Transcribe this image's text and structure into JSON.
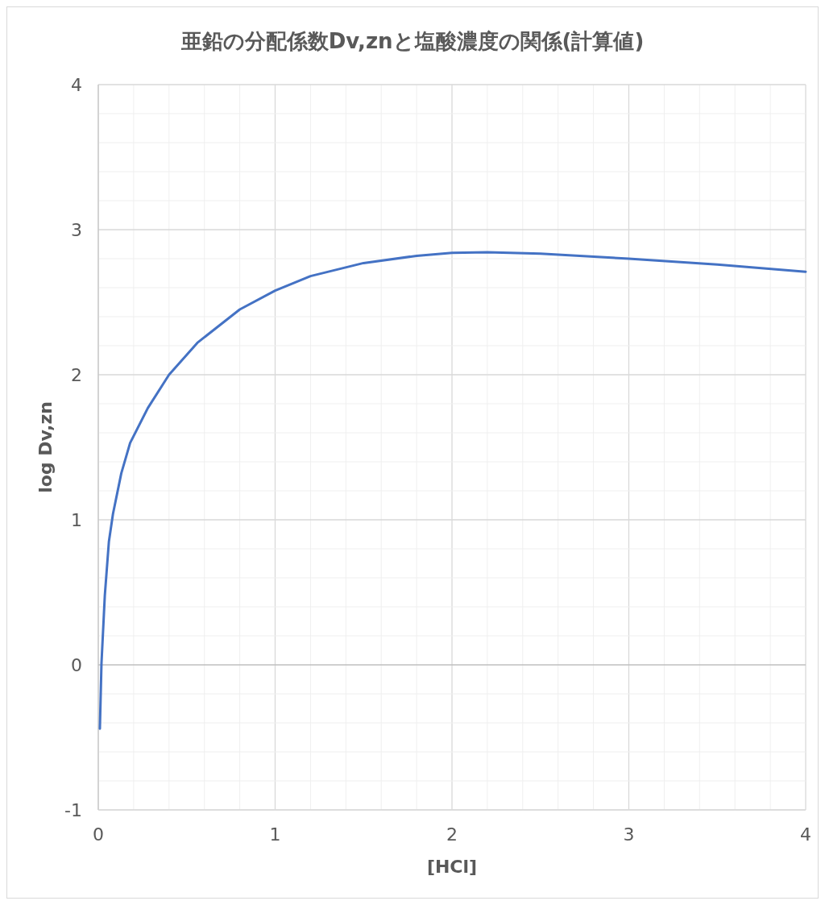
{
  "chart_data": {
    "type": "line",
    "title": "亜鉛の分配係数Dv,znと塩酸濃度の関係(計算値)",
    "xlabel": "[HCl]",
    "ylabel": "log Dv,zn",
    "x": [
      0.009,
      0.018,
      0.037,
      0.06,
      0.083,
      0.13,
      0.18,
      0.28,
      0.4,
      0.56,
      0.8,
      1,
      1.2,
      1.5,
      1.8,
      2,
      2.2,
      2.5,
      3,
      3.5,
      4
    ],
    "series": [
      {
        "color": "#4472c4",
        "values": [
          -0.44,
          0.01,
          0.48,
          0.85,
          1.04,
          1.32,
          1.53,
          1.77,
          2.0,
          2.22,
          2.45,
          2.58,
          2.68,
          2.77,
          2.82,
          2.84,
          2.845,
          2.835,
          2.8,
          2.76,
          2.71
        ]
      }
    ],
    "xlim": [
      0,
      4
    ],
    "ylim": [
      -1,
      4
    ],
    "xticks": [
      0,
      {
        "value": 0.2,
        "label": null
      },
      {
        "value": 0.4,
        "label": null
      },
      {
        "value": 0.6,
        "label": null
      },
      {
        "value": 0.8,
        "label": null
      },
      1,
      {
        "value": 1.2,
        "label": null
      },
      {
        "value": 1.4,
        "label": null
      },
      {
        "value": 1.6,
        "label": null
      },
      {
        "value": 1.8,
        "label": null
      },
      2,
      {
        "value": 2.2,
        "label": null
      },
      {
        "value": 2.4,
        "label": null
      },
      {
        "value": 2.6,
        "label": null
      },
      {
        "value": 2.8,
        "label": null
      },
      3,
      {
        "value": 3.2,
        "label": null
      },
      {
        "value": 3.4,
        "label": null
      },
      {
        "value": 3.6,
        "label": null
      },
      {
        "value": 3.8,
        "label": null
      },
      4
    ],
    "yticks": [
      -1,
      {
        "value": -0.8,
        "label": null
      },
      {
        "value": -0.6,
        "label": null
      },
      {
        "value": -0.4,
        "label": null
      },
      {
        "value": -0.2,
        "label": null
      },
      0,
      {
        "value": 0.2,
        "label": null
      },
      {
        "value": 0.4,
        "label": null
      },
      {
        "value": 0.6,
        "label": null
      },
      {
        "value": 0.8,
        "label": null
      },
      1,
      {
        "value": 1.2,
        "label": null
      },
      {
        "value": 1.4,
        "label": null
      },
      {
        "value": 1.6,
        "label": null
      },
      {
        "value": 1.8,
        "label": null
      },
      2,
      {
        "value": 2.2,
        "label": null
      },
      {
        "value": 2.4,
        "label": null
      },
      {
        "value": 2.6,
        "label": null
      },
      {
        "value": 2.8,
        "label": null
      },
      3,
      {
        "value": 3.2,
        "label": null
      },
      {
        "value": 3.4,
        "label": null
      },
      {
        "value": 3.6,
        "label": null
      },
      {
        "value": 3.8,
        "label": null
      },
      4
    ],
    "grid": true,
    "marker": "none",
    "line_style": "solid"
  }
}
